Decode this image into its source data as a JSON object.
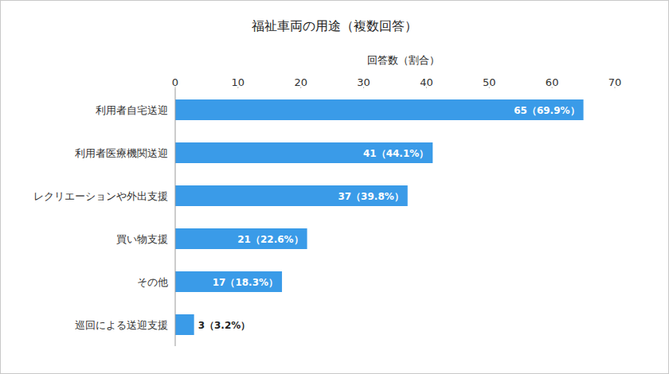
{
  "chart_data": {
    "type": "bar",
    "orientation": "horizontal",
    "title": "福祉車両の用途（複数回答）",
    "x_label": "回答数（割合）",
    "categories": [
      "利用者自宅送迎",
      "利用者医療機関送迎",
      "レクリエーションや外出支援",
      "買い物支援",
      "その他",
      "巡回による送迎支援"
    ],
    "values": [
      65,
      41,
      37,
      21,
      17,
      3
    ],
    "value_labels": [
      "65（69.9%）",
      "41（44.1%）",
      "37（39.8%）",
      "21（22.6%）",
      "17（18.3%）",
      "3（3.2%）"
    ],
    "color": "#3a9be8",
    "xlim": [
      0,
      70
    ],
    "xticks": [
      0,
      10,
      20,
      30,
      40,
      50,
      60,
      70
    ],
    "grid": false,
    "data_labels": true
  }
}
